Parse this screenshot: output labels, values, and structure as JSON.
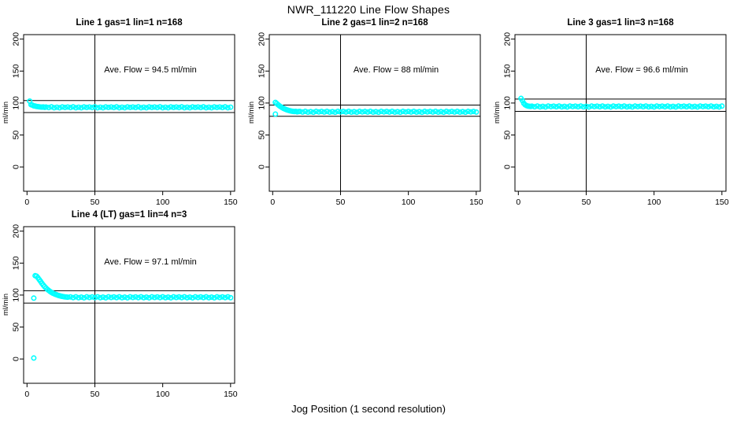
{
  "figure": {
    "title": "NWR_111220  Line Flow Shapes",
    "xlabel": "Jog Position (1 second resolution)",
    "point_color": "#00FFFF",
    "axis_color": "#000000",
    "background": "#FFFFFF"
  },
  "chart_data": [
    {
      "type": "scatter",
      "title": "Line 1 gas=1 lin=1 n=168",
      "annotation": "Ave. Flow =  94.5  ml/min",
      "ave_flow": 94.5,
      "ylabel": "ml/min",
      "xticks": [
        0,
        50,
        100,
        150
      ],
      "yticks": [
        0,
        50,
        100,
        150,
        200
      ],
      "xlim": [
        -2.5,
        153
      ],
      "ylim": [
        -38,
        207
      ],
      "vline_x": 50,
      "hlines": [
        103.95,
        85.05
      ],
      "grid": false,
      "points": [
        [
          2,
          103
        ],
        [
          3,
          97.4
        ],
        [
          4,
          96.6
        ],
        [
          5,
          95.6
        ],
        [
          6,
          95.2
        ],
        [
          7,
          94.6
        ],
        [
          8,
          94.4
        ],
        [
          9,
          94.0
        ],
        [
          10,
          93.8
        ],
        [
          11,
          93.6
        ],
        [
          12,
          93.9
        ],
        [
          13,
          93.2
        ],
        [
          14,
          93.8
        ],
        [
          16,
          92.9
        ],
        [
          18,
          94.0
        ],
        [
          20,
          92.7
        ],
        [
          22,
          93.5
        ],
        [
          24,
          92.6
        ],
        [
          26,
          93.9
        ],
        [
          28,
          93.1
        ],
        [
          30,
          93.8
        ],
        [
          32,
          92.9
        ],
        [
          34,
          94.0
        ],
        [
          36,
          92.7
        ],
        [
          38,
          93.5
        ],
        [
          40,
          92.6
        ],
        [
          42,
          93.9
        ],
        [
          44,
          93.1
        ],
        [
          46,
          93.8
        ],
        [
          48,
          92.9
        ],
        [
          50,
          94.0
        ],
        [
          52,
          92.7
        ],
        [
          54,
          93.5
        ],
        [
          56,
          92.6
        ],
        [
          58,
          93.9
        ],
        [
          60,
          93.1
        ],
        [
          62,
          93.8
        ],
        [
          64,
          92.9
        ],
        [
          66,
          94.0
        ],
        [
          68,
          92.7
        ],
        [
          70,
          93.5
        ],
        [
          72,
          92.6
        ],
        [
          74,
          93.9
        ],
        [
          76,
          93.1
        ],
        [
          78,
          93.8
        ],
        [
          80,
          92.9
        ],
        [
          82,
          94.0
        ],
        [
          84,
          92.7
        ],
        [
          86,
          93.5
        ],
        [
          88,
          92.6
        ],
        [
          90,
          93.9
        ],
        [
          92,
          93.1
        ],
        [
          94,
          93.8
        ],
        [
          96,
          92.9
        ],
        [
          98,
          94.0
        ],
        [
          100,
          92.7
        ],
        [
          102,
          93.5
        ],
        [
          104,
          92.6
        ],
        [
          106,
          93.9
        ],
        [
          108,
          93.1
        ],
        [
          110,
          93.8
        ],
        [
          112,
          92.9
        ],
        [
          114,
          94.0
        ],
        [
          116,
          92.7
        ],
        [
          118,
          93.5
        ],
        [
          120,
          92.6
        ],
        [
          122,
          93.9
        ],
        [
          124,
          93.1
        ],
        [
          126,
          93.8
        ],
        [
          128,
          92.9
        ],
        [
          130,
          94.0
        ],
        [
          132,
          92.7
        ],
        [
          134,
          93.5
        ],
        [
          136,
          92.6
        ],
        [
          138,
          93.9
        ],
        [
          140,
          93.1
        ],
        [
          142,
          93.8
        ],
        [
          144,
          92.9
        ],
        [
          146,
          94.0
        ],
        [
          148,
          92.7
        ],
        [
          150,
          93.5
        ]
      ]
    },
    {
      "type": "scatter",
      "title": "Line 2 gas=1 lin=2 n=168",
      "annotation": "Ave. Flow =  88  ml/min",
      "ave_flow": 88,
      "ylabel": "ml/min",
      "xticks": [
        0,
        50,
        100,
        150
      ],
      "yticks": [
        0,
        50,
        100,
        150,
        200
      ],
      "xlim": [
        -2.5,
        153
      ],
      "ylim": [
        -38,
        207
      ],
      "vline_x": 50,
      "hlines": [
        96.8,
        79.2
      ],
      "grid": false,
      "points": [
        [
          2,
          101
        ],
        [
          2,
          82.7
        ],
        [
          3,
          99.2
        ],
        [
          4,
          97.3
        ],
        [
          5,
          95.6
        ],
        [
          6,
          94.1
        ],
        [
          7,
          92.8
        ],
        [
          8,
          91.6
        ],
        [
          9,
          90.6
        ],
        [
          10,
          89.7
        ],
        [
          11,
          88.9
        ],
        [
          12,
          88.3
        ],
        [
          13,
          87.7
        ],
        [
          14,
          87.3
        ],
        [
          15,
          86.9
        ],
        [
          16,
          86.6
        ],
        [
          17,
          86.9
        ],
        [
          18,
          86.2
        ],
        [
          19,
          86.7
        ],
        [
          20,
          86.8
        ],
        [
          22,
          85.9
        ],
        [
          24,
          87.0
        ],
        [
          26,
          85.7
        ],
        [
          28,
          86.5
        ],
        [
          30,
          85.6
        ],
        [
          32,
          86.9
        ],
        [
          34,
          86.1
        ],
        [
          36,
          86.8
        ],
        [
          38,
          85.9
        ],
        [
          40,
          87.0
        ],
        [
          42,
          85.7
        ],
        [
          44,
          86.5
        ],
        [
          46,
          85.6
        ],
        [
          48,
          86.9
        ],
        [
          50,
          86.1
        ],
        [
          52,
          86.8
        ],
        [
          54,
          85.9
        ],
        [
          56,
          87.0
        ],
        [
          58,
          85.7
        ],
        [
          60,
          86.5
        ],
        [
          62,
          85.6
        ],
        [
          64,
          86.9
        ],
        [
          66,
          86.1
        ],
        [
          68,
          86.8
        ],
        [
          70,
          85.9
        ],
        [
          72,
          87.0
        ],
        [
          74,
          85.7
        ],
        [
          76,
          86.5
        ],
        [
          78,
          85.6
        ],
        [
          80,
          86.9
        ],
        [
          82,
          86.1
        ],
        [
          84,
          86.8
        ],
        [
          86,
          85.9
        ],
        [
          88,
          87.0
        ],
        [
          90,
          85.7
        ],
        [
          92,
          86.5
        ],
        [
          94,
          85.6
        ],
        [
          96,
          86.9
        ],
        [
          98,
          86.1
        ],
        [
          100,
          86.8
        ],
        [
          102,
          85.9
        ],
        [
          104,
          87.0
        ],
        [
          106,
          85.7
        ],
        [
          108,
          86.5
        ],
        [
          110,
          85.6
        ],
        [
          112,
          86.9
        ],
        [
          114,
          86.1
        ],
        [
          116,
          86.8
        ],
        [
          118,
          85.9
        ],
        [
          120,
          87.0
        ],
        [
          122,
          85.7
        ],
        [
          124,
          86.5
        ],
        [
          126,
          85.6
        ],
        [
          128,
          86.9
        ],
        [
          130,
          86.1
        ],
        [
          132,
          86.8
        ],
        [
          134,
          85.9
        ],
        [
          136,
          87.0
        ],
        [
          138,
          85.7
        ],
        [
          140,
          86.5
        ],
        [
          142,
          85.6
        ],
        [
          144,
          86.9
        ],
        [
          146,
          86.1
        ],
        [
          148,
          86.8
        ],
        [
          150,
          85.9
        ]
      ]
    },
    {
      "type": "scatter",
      "title": "Line 3 gas=1 lin=3 n=168",
      "annotation": "Ave. Flow =  96.6  ml/min",
      "ave_flow": 96.6,
      "ylabel": "ml/min",
      "xticks": [
        0,
        50,
        100,
        150
      ],
      "yticks": [
        0,
        50,
        100,
        150,
        200
      ],
      "xlim": [
        -2.5,
        153
      ],
      "ylim": [
        -38,
        207
      ],
      "vline_x": 50,
      "hlines": [
        106.26,
        86.94
      ],
      "grid": false,
      "points": [
        [
          2,
          107.2
        ],
        [
          3,
          103.8
        ],
        [
          4,
          99.6
        ],
        [
          5,
          97.2
        ],
        [
          6,
          96.0
        ],
        [
          7,
          95.3
        ],
        [
          8,
          94.9
        ],
        [
          9,
          94.7
        ],
        [
          10,
          95.1
        ],
        [
          12,
          94.2
        ],
        [
          14,
          95.3
        ],
        [
          16,
          94.0
        ],
        [
          18,
          94.8
        ],
        [
          20,
          93.9
        ],
        [
          22,
          95.2
        ],
        [
          24,
          94.4
        ],
        [
          26,
          95.1
        ],
        [
          28,
          94.2
        ],
        [
          30,
          95.3
        ],
        [
          32,
          94.0
        ],
        [
          34,
          94.8
        ],
        [
          36,
          93.9
        ],
        [
          38,
          95.2
        ],
        [
          40,
          94.4
        ],
        [
          42,
          95.1
        ],
        [
          44,
          94.2
        ],
        [
          46,
          95.3
        ],
        [
          48,
          94.0
        ],
        [
          50,
          94.8
        ],
        [
          52,
          93.9
        ],
        [
          54,
          95.2
        ],
        [
          56,
          94.4
        ],
        [
          58,
          95.1
        ],
        [
          60,
          94.2
        ],
        [
          62,
          95.3
        ],
        [
          64,
          94.0
        ],
        [
          66,
          94.8
        ],
        [
          68,
          93.9
        ],
        [
          70,
          95.2
        ],
        [
          72,
          94.4
        ],
        [
          74,
          95.1
        ],
        [
          76,
          94.2
        ],
        [
          78,
          95.3
        ],
        [
          80,
          94.0
        ],
        [
          82,
          94.8
        ],
        [
          84,
          93.9
        ],
        [
          86,
          95.2
        ],
        [
          88,
          94.4
        ],
        [
          90,
          95.1
        ],
        [
          92,
          94.2
        ],
        [
          94,
          95.3
        ],
        [
          96,
          94.0
        ],
        [
          98,
          94.8
        ],
        [
          100,
          93.9
        ],
        [
          102,
          95.2
        ],
        [
          104,
          94.4
        ],
        [
          106,
          95.1
        ],
        [
          108,
          94.2
        ],
        [
          110,
          95.3
        ],
        [
          112,
          94.0
        ],
        [
          114,
          94.8
        ],
        [
          116,
          93.9
        ],
        [
          118,
          95.2
        ],
        [
          120,
          94.4
        ],
        [
          122,
          95.1
        ],
        [
          124,
          94.2
        ],
        [
          126,
          95.3
        ],
        [
          128,
          94.0
        ],
        [
          130,
          94.8
        ],
        [
          132,
          93.9
        ],
        [
          134,
          95.2
        ],
        [
          136,
          94.4
        ],
        [
          138,
          95.1
        ],
        [
          140,
          94.2
        ],
        [
          142,
          95.3
        ],
        [
          144,
          94.0
        ],
        [
          146,
          94.8
        ],
        [
          148,
          93.9
        ],
        [
          150,
          95.2
        ]
      ]
    },
    {
      "type": "scatter",
      "title": "Line 4 (LT) gas=1 lin=4 n=3",
      "annotation": "Ave. Flow =  97.1  ml/min",
      "ave_flow": 97.1,
      "ylabel": "ml/min",
      "xticks": [
        0,
        50,
        100,
        150
      ],
      "yticks": [
        0,
        50,
        100,
        150,
        200
      ],
      "xlim": [
        -2.5,
        153
      ],
      "ylim": [
        -38,
        207
      ],
      "vline_x": 50,
      "hlines": [
        106.81,
        87.39
      ],
      "grid": false,
      "points": [
        [
          5,
          1.5
        ],
        [
          5,
          95.2
        ],
        [
          6,
          130.3
        ],
        [
          7,
          129.6
        ],
        [
          8,
          127.2
        ],
        [
          9,
          124.3
        ],
        [
          10,
          121.4
        ],
        [
          11,
          118.4
        ],
        [
          12,
          115.6
        ],
        [
          13,
          113.1
        ],
        [
          14,
          110.9
        ],
        [
          15,
          108.9
        ],
        [
          16,
          107.2
        ],
        [
          17,
          105.6
        ],
        [
          18,
          104.2
        ],
        [
          19,
          103.0
        ],
        [
          20,
          102.0
        ],
        [
          21,
          101.1
        ],
        [
          22,
          100.3
        ],
        [
          23,
          99.5
        ],
        [
          24,
          98.9
        ],
        [
          25,
          98.3
        ],
        [
          26,
          97.9
        ],
        [
          27,
          97.5
        ],
        [
          28,
          97.1
        ],
        [
          29,
          96.9
        ],
        [
          30,
          96.7
        ],
        [
          32,
          97.1
        ],
        [
          34,
          96.0
        ],
        [
          36,
          97.3
        ],
        [
          38,
          95.9
        ],
        [
          40,
          96.8
        ],
        [
          42,
          95.7
        ],
        [
          44,
          97.2
        ],
        [
          46,
          96.2
        ],
        [
          48,
          97.1
        ],
        [
          50,
          96.0
        ],
        [
          52,
          97.3
        ],
        [
          54,
          95.9
        ],
        [
          56,
          96.8
        ],
        [
          58,
          95.7
        ],
        [
          60,
          97.2
        ],
        [
          62,
          96.2
        ],
        [
          64,
          97.1
        ],
        [
          66,
          96.0
        ],
        [
          68,
          97.3
        ],
        [
          70,
          95.9
        ],
        [
          72,
          96.8
        ],
        [
          74,
          95.7
        ],
        [
          76,
          97.2
        ],
        [
          78,
          96.2
        ],
        [
          80,
          97.1
        ],
        [
          82,
          96.0
        ],
        [
          84,
          97.3
        ],
        [
          86,
          95.9
        ],
        [
          88,
          96.8
        ],
        [
          90,
          95.7
        ],
        [
          92,
          97.2
        ],
        [
          94,
          96.2
        ],
        [
          96,
          97.1
        ],
        [
          98,
          96.0
        ],
        [
          100,
          97.3
        ],
        [
          102,
          95.9
        ],
        [
          104,
          96.8
        ],
        [
          106,
          95.7
        ],
        [
          108,
          97.2
        ],
        [
          110,
          96.2
        ],
        [
          112,
          97.1
        ],
        [
          114,
          96.0
        ],
        [
          116,
          97.3
        ],
        [
          118,
          95.9
        ],
        [
          120,
          96.8
        ],
        [
          122,
          95.7
        ],
        [
          124,
          97.2
        ],
        [
          126,
          96.2
        ],
        [
          128,
          97.1
        ],
        [
          130,
          96.0
        ],
        [
          132,
          97.3
        ],
        [
          134,
          95.9
        ],
        [
          136,
          96.8
        ],
        [
          138,
          95.7
        ],
        [
          140,
          97.2
        ],
        [
          142,
          96.2
        ],
        [
          144,
          97.1
        ],
        [
          146,
          96.0
        ],
        [
          148,
          97.3
        ],
        [
          150,
          95.9
        ]
      ]
    }
  ]
}
